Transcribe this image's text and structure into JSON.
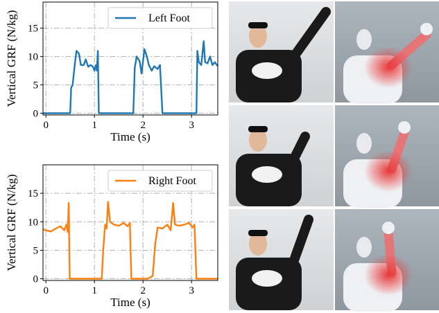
{
  "chart_data": [
    {
      "type": "line",
      "xlabel": "Time (s)",
      "ylabel": "Vertical GRF (N/kg)",
      "xlim": [
        -0.06,
        3.54
      ],
      "ylim": [
        -0.3,
        19.6
      ],
      "xticks": [
        0,
        1,
        2,
        3
      ],
      "yticks": [
        0,
        5,
        10,
        15
      ],
      "grid": true,
      "legend": "upper right",
      "x": [
        -0.06,
        0.5,
        0.52,
        0.55,
        0.6,
        0.63,
        0.68,
        0.72,
        0.78,
        0.82,
        0.87,
        0.92,
        0.97,
        1.0,
        1.03,
        1.05,
        1.07,
        1.09,
        1.8,
        1.83,
        1.87,
        1.93,
        1.97,
        2.03,
        2.08,
        2.12,
        2.18,
        2.23,
        2.3,
        2.35,
        2.4,
        3.1,
        3.12,
        3.15,
        3.2,
        3.25,
        3.28,
        3.33,
        3.38,
        3.43,
        3.48,
        3.54
      ],
      "series": [
        {
          "name": "Left Foot",
          "color": "#1f77b4",
          "values": [
            0,
            0,
            4.5,
            5,
            9,
            11,
            10.5,
            8.5,
            8.5,
            9.5,
            8.2,
            8.5,
            8.2,
            7.5,
            8.5,
            7.5,
            11,
            0,
            0,
            8,
            10,
            9.2,
            7,
            11.3,
            10,
            8.5,
            7.5,
            8.3,
            7.8,
            8.5,
            0,
            0,
            11,
            9,
            8.5,
            12.7,
            9,
            8.8,
            10,
            8.5,
            9,
            8.3
          ]
        }
      ]
    },
    {
      "type": "line",
      "xlabel": "Time (s)",
      "ylabel": "Vertical GRF (N/kg)",
      "xlim": [
        -0.06,
        3.54
      ],
      "ylim": [
        -0.3,
        20
      ],
      "xticks": [
        0,
        1,
        2,
        3
      ],
      "yticks": [
        0,
        5,
        10,
        15
      ],
      "grid": true,
      "legend": "upper right",
      "x": [
        -0.06,
        0,
        0.1,
        0.2,
        0.3,
        0.38,
        0.42,
        0.45,
        0.47,
        0.49,
        1.15,
        1.18,
        1.22,
        1.25,
        1.28,
        1.32,
        1.4,
        1.5,
        1.6,
        1.68,
        1.73,
        1.76,
        2.1,
        2.2,
        2.25,
        2.3,
        2.4,
        2.5,
        2.57,
        2.62,
        2.66,
        2.75,
        2.85,
        2.95,
        3.02,
        3.06,
        3.1,
        3.54
      ],
      "series": [
        {
          "name": "Right Foot",
          "color": "#ff7f0e",
          "values": [
            8.7,
            8.5,
            8.3,
            8.8,
            9.2,
            8.5,
            9.5,
            8.2,
            13.3,
            0,
            0,
            5,
            9.5,
            8.8,
            13.5,
            10,
            9.5,
            9.3,
            9.8,
            9.2,
            9.8,
            0,
            0,
            0.5,
            6,
            9,
            8.8,
            9.5,
            8.5,
            13.3,
            9.5,
            9.3,
            9.5,
            9.8,
            9,
            9.5,
            0,
            0
          ]
        }
      ]
    }
  ]
}
